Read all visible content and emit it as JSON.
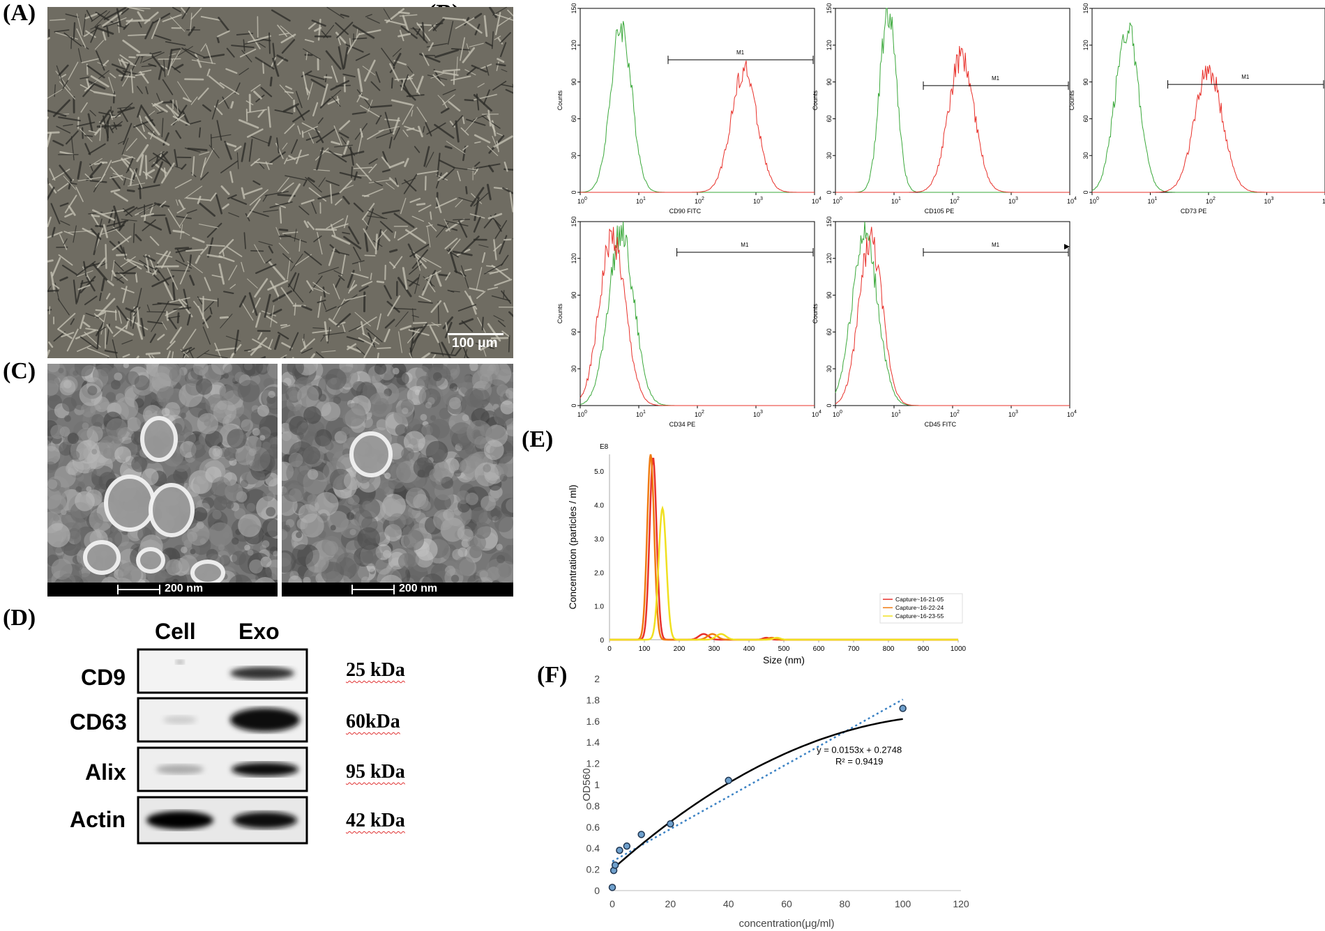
{
  "panels": {
    "A": "(A)",
    "B": "(B)",
    "C": "(C)",
    "D": "(D)",
    "E": "(E)",
    "F": "(F)"
  },
  "panelA": {
    "scalebar": "100 μm"
  },
  "panelB": {
    "ylabel": "Counts",
    "yticks": [
      "150",
      "120",
      "90",
      "60",
      "30",
      "0"
    ],
    "xticks": [
      "10",
      "10",
      "10",
      "10",
      "10"
    ],
    "xexp": [
      "0",
      "1",
      "2",
      "3",
      "4"
    ],
    "gate": "M1",
    "hist": [
      {
        "xlabel": "CD90 FITC"
      },
      {
        "xlabel": "CD105 PE"
      },
      {
        "xlabel": "CD73 PE"
      },
      {
        "xlabel": "CD34 PE"
      },
      {
        "xlabel": "CD45 FITC"
      }
    ],
    "colors": {
      "isotype": "#3aa83a",
      "marker": "#e8302a"
    }
  },
  "panelC": {
    "scalebar": "200 nm"
  },
  "panelD": {
    "lanes": [
      "Cell",
      "Exo"
    ],
    "rows": [
      {
        "protein": "CD9",
        "size": "25 kDa"
      },
      {
        "protein": "CD63",
        "size": "60kDa"
      },
      {
        "protein": "Alix",
        "size": "95 kDa"
      },
      {
        "protein": "Actin",
        "size": "42 kDa"
      }
    ]
  },
  "chart_data": [
    {
      "type": "line",
      "panel": "E",
      "title": "",
      "xlabel": "Size (nm)",
      "ylabel": "Concentration (particles / ml)",
      "yscale_label": "E8",
      "xlim": [
        0,
        1000
      ],
      "ylim": [
        0,
        5.5
      ],
      "xticks": [
        "0",
        "100",
        "200",
        "300",
        "400",
        "500",
        "600",
        "700",
        "800",
        "900",
        "1000"
      ],
      "yticks": [
        "0",
        "1.0",
        "2.0",
        "3.0",
        "4.0",
        "5.0"
      ],
      "legend": [
        "Capture~16-21-05",
        "Capture~16-22-24",
        "Capture~16-23-55"
      ],
      "series": [
        {
          "name": "Capture~16-21-05",
          "color": "#e8302a",
          "peak_x": 125,
          "peak_y": 5.4
        },
        {
          "name": "Capture~16-22-24",
          "color": "#f07a10",
          "peak_x": 118,
          "peak_y": 5.5
        },
        {
          "name": "Capture~16-23-55",
          "color": "#f0e020",
          "peak_x": 152,
          "peak_y": 3.9
        }
      ]
    },
    {
      "type": "scatter",
      "panel": "F",
      "xlabel": "concentration(μg/ml)",
      "ylabel": "OD560",
      "xlim": [
        0,
        120
      ],
      "ylim": [
        0,
        2
      ],
      "xticks": [
        "0",
        "20",
        "40",
        "60",
        "80",
        "100",
        "120"
      ],
      "yticks": [
        "0",
        "0.2",
        "0.4",
        "0.6",
        "0.8",
        "1",
        "1.2",
        "1.4",
        "1.6",
        "1.8",
        "2"
      ],
      "x": [
        0,
        0.5,
        1,
        2.5,
        5,
        10,
        20,
        40,
        100
      ],
      "y": [
        0.03,
        0.19,
        0.24,
        0.38,
        0.42,
        0.53,
        0.63,
        1.04,
        1.72
      ],
      "trend_equation": "y = 0.0153x + 0.2748",
      "r_squared": "R² = 0.9419",
      "trend": {
        "slope": 0.0153,
        "intercept": 0.2748
      }
    }
  ]
}
